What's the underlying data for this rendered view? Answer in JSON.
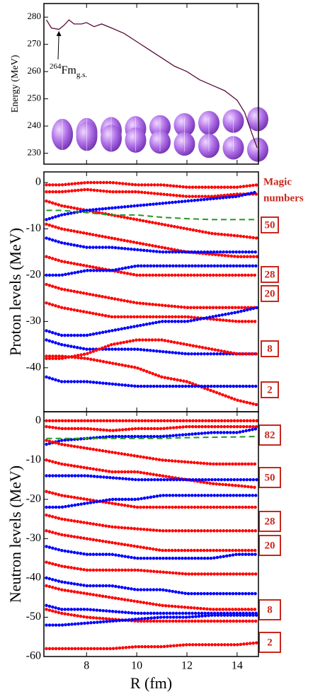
{
  "chart_data": [
    {
      "type": "line",
      "ylabel": "Energy (MeV)",
      "color": "#5a0a3a",
      "x": [
        6.4,
        6.6,
        6.9,
        7.1,
        7.3,
        7.5,
        7.8,
        8.0,
        8.3,
        8.6,
        9.0,
        9.5,
        10,
        10.5,
        11,
        11.5,
        12,
        12.5,
        13,
        13.5,
        14,
        14.3,
        14.6,
        14.8
      ],
      "values": [
        279,
        276,
        275.5,
        277,
        279,
        277.5,
        277.5,
        278,
        276.5,
        277.5,
        276,
        274,
        271,
        268,
        265,
        262,
        260,
        257,
        255,
        253,
        249.5,
        245,
        237,
        232
      ],
      "xlim": [
        6.3,
        14.85
      ],
      "xticks": [
        8,
        10,
        12,
        14
      ],
      "ylim": [
        226,
        285
      ],
      "yticks": [
        230,
        240,
        250,
        260,
        270,
        280
      ],
      "annotation": {
        "mass": "264",
        "element": "Fm",
        "state": "g.s."
      }
    },
    {
      "type": "dotted-levels",
      "ylabel": "Proton levels (MeV)",
      "magic_title": [
        "Magic",
        "numbers"
      ],
      "magic_numbers": [
        "50",
        "28",
        "20",
        "8",
        "2"
      ],
      "x": [
        6.4,
        7,
        8,
        9,
        10,
        11,
        12,
        13,
        14,
        14.8
      ],
      "xlim": [
        6.3,
        14.85
      ],
      "xticks": [
        8,
        10,
        12,
        14
      ],
      "ylim": [
        -49.5,
        2.3
      ],
      "yticks": [
        0,
        -10,
        -20,
        -30,
        -40
      ],
      "series": [
        {
          "color": "#ff0000",
          "values": [
            -0.5,
            -0.5,
            0,
            0,
            -0.5,
            -0.5,
            -1,
            -1,
            -1,
            -0.5
          ]
        },
        {
          "color": "#ff0000",
          "values": [
            -2,
            -2,
            -1.5,
            -2,
            -2,
            -2.5,
            -3,
            -3,
            -2.5,
            -2.5
          ]
        },
        {
          "color": "#ff0000",
          "values": [
            -4,
            -5,
            -6,
            -7,
            -8,
            -9,
            -10,
            -11,
            -11.5,
            -12
          ]
        },
        {
          "color": "#0000ff",
          "values": [
            -8,
            -7,
            -6,
            -5.5,
            -5,
            -4.5,
            -4,
            -3.5,
            -3,
            -2
          ]
        },
        {
          "color": "#ff0000",
          "values": [
            -9,
            -10,
            -11,
            -12,
            -13,
            -14,
            -15,
            -15.5,
            -16,
            -16
          ]
        },
        {
          "color": "#0000ff",
          "values": [
            -12,
            -13,
            -14,
            -14,
            -14.5,
            -15,
            -15,
            -15,
            -15,
            -15
          ]
        },
        {
          "color": "#ff0000",
          "values": [
            -16,
            -17,
            -18,
            -19,
            -20,
            -20,
            -20,
            -20,
            -20,
            -20
          ]
        },
        {
          "color": "#0000ff",
          "values": [
            -20,
            -20,
            -19,
            -19,
            -18,
            -18,
            -18,
            -18,
            -18,
            -18
          ]
        },
        {
          "color": "#ff0000",
          "values": [
            -22,
            -23,
            -24,
            -25,
            -26,
            -26.5,
            -27,
            -27,
            -27,
            -27
          ]
        },
        {
          "color": "#ff0000",
          "values": [
            -26,
            -27,
            -28,
            -29,
            -29,
            -29,
            -29,
            -29.5,
            -30,
            -30
          ]
        },
        {
          "color": "#0000ff",
          "values": [
            -32,
            -33,
            -33,
            -32,
            -31,
            -30,
            -30,
            -29,
            -28,
            -27
          ]
        },
        {
          "color": "#0000ff",
          "values": [
            -34,
            -35,
            -36,
            -36,
            -36,
            -36.5,
            -37,
            -37,
            -37,
            -37
          ]
        },
        {
          "color": "#ff0000",
          "values": [
            -38,
            -38,
            -37,
            -35,
            -34,
            -34,
            -35,
            -36,
            -37,
            -37
          ]
        },
        {
          "color": "#ff0000",
          "values": [
            -37.5,
            -37.5,
            -38,
            -39,
            -40,
            -42,
            -43,
            -45,
            -47,
            -48
          ]
        },
        {
          "color": "#0000ff",
          "values": [
            -42,
            -43,
            -43,
            -43.5,
            -44,
            -44,
            -44,
            -44,
            -44,
            -44
          ]
        },
        {
          "color": "#229922",
          "dashed": true,
          "values": [
            -6,
            -6,
            -6.5,
            -7,
            -7,
            -7.5,
            -7.8,
            -8,
            -8,
            -8
          ]
        }
      ]
    },
    {
      "type": "dotted-levels",
      "ylabel": "Neutron levels (MeV)",
      "xlabel": "R (fm)",
      "magic_numbers": [
        "82",
        "50",
        "28",
        "20",
        "8",
        "2"
      ],
      "x": [
        6.4,
        7,
        8,
        9,
        10,
        11,
        12,
        13,
        14,
        14.8
      ],
      "xlim": [
        6.3,
        14.85
      ],
      "xticks": [
        8,
        10,
        12,
        14
      ],
      "ylim": [
        -60,
        2.3
      ],
      "yticks": [
        0,
        -10,
        -20,
        -30,
        -40,
        -50,
        -60
      ],
      "series": [
        {
          "color": "#ff0000",
          "values": [
            0,
            0,
            0,
            0,
            0,
            0,
            0,
            0,
            0,
            0
          ]
        },
        {
          "color": "#ff0000",
          "values": [
            -1.5,
            -2,
            -2,
            -2.5,
            -2,
            -2,
            -1.5,
            -1.5,
            -1.5,
            -1.5
          ]
        },
        {
          "color": "#0000ff",
          "values": [
            -6,
            -5,
            -4.5,
            -4,
            -4,
            -4,
            -3.5,
            -3,
            -3,
            -2
          ]
        },
        {
          "color": "#ff0000",
          "values": [
            -5,
            -6,
            -7,
            -8,
            -9,
            -10,
            -10.5,
            -11,
            -11,
            -11
          ]
        },
        {
          "color": "#ff0000",
          "values": [
            -10,
            -11,
            -12,
            -13,
            -13,
            -14,
            -15,
            -16,
            -16.5,
            -17
          ]
        },
        {
          "color": "#0000ff",
          "values": [
            -14,
            -14,
            -14,
            -14.5,
            -15,
            -15,
            -15,
            -15,
            -15,
            -15
          ]
        },
        {
          "color": "#ff0000",
          "values": [
            -18,
            -19,
            -20,
            -21,
            -22,
            -22,
            -22,
            -22,
            -22,
            -22
          ]
        },
        {
          "color": "#0000ff",
          "values": [
            -22,
            -22,
            -21,
            -20,
            -20,
            -19,
            -19,
            -19,
            -19,
            -19
          ]
        },
        {
          "color": "#ff0000",
          "values": [
            -24,
            -25,
            -26,
            -27,
            -27.5,
            -28,
            -28,
            -28,
            -28,
            -28
          ]
        },
        {
          "color": "#ff0000",
          "values": [
            -28,
            -29,
            -30,
            -31,
            -32,
            -33,
            -33,
            -33,
            -33,
            -33
          ]
        },
        {
          "color": "#0000ff",
          "values": [
            -32,
            -33,
            -34,
            -34,
            -35,
            -35,
            -35,
            -35,
            -34,
            -34
          ]
        },
        {
          "color": "#ff0000",
          "values": [
            -36,
            -37,
            -38,
            -38,
            -38,
            -38.5,
            -39,
            -39,
            -39,
            -39
          ]
        },
        {
          "color": "#0000ff",
          "values": [
            -40,
            -41,
            -42,
            -42,
            -43,
            -43,
            -44,
            -44,
            -44,
            -44
          ]
        },
        {
          "color": "#ff0000",
          "values": [
            -42,
            -43,
            -44,
            -45,
            -46,
            -47,
            -47.5,
            -48,
            -48,
            -48
          ]
        },
        {
          "color": "#0000ff",
          "values": [
            -47,
            -48,
            -48,
            -48.5,
            -49,
            -49,
            -49,
            -49,
            -49,
            -49
          ]
        },
        {
          "color": "#ff0000",
          "values": [
            -48,
            -49,
            -50,
            -50.5,
            -51,
            -51,
            -51,
            -51,
            -51,
            -51
          ]
        },
        {
          "color": "#0000ff",
          "values": [
            -52,
            -52,
            -51.5,
            -51,
            -50.5,
            -50,
            -50,
            -49.5,
            -49.5,
            -49.5
          ]
        },
        {
          "color": "#ff0000",
          "values": [
            -58,
            -58,
            -58,
            -58,
            -57.5,
            -57.5,
            -57,
            -57,
            -57,
            -56.5
          ]
        },
        {
          "color": "#229922",
          "dashed": true,
          "values": [
            -4.5,
            -4.5,
            -4.5,
            -4.5,
            -4.5,
            -4.5,
            -4.3,
            -4.2,
            -4.1,
            -4
          ]
        }
      ]
    }
  ]
}
